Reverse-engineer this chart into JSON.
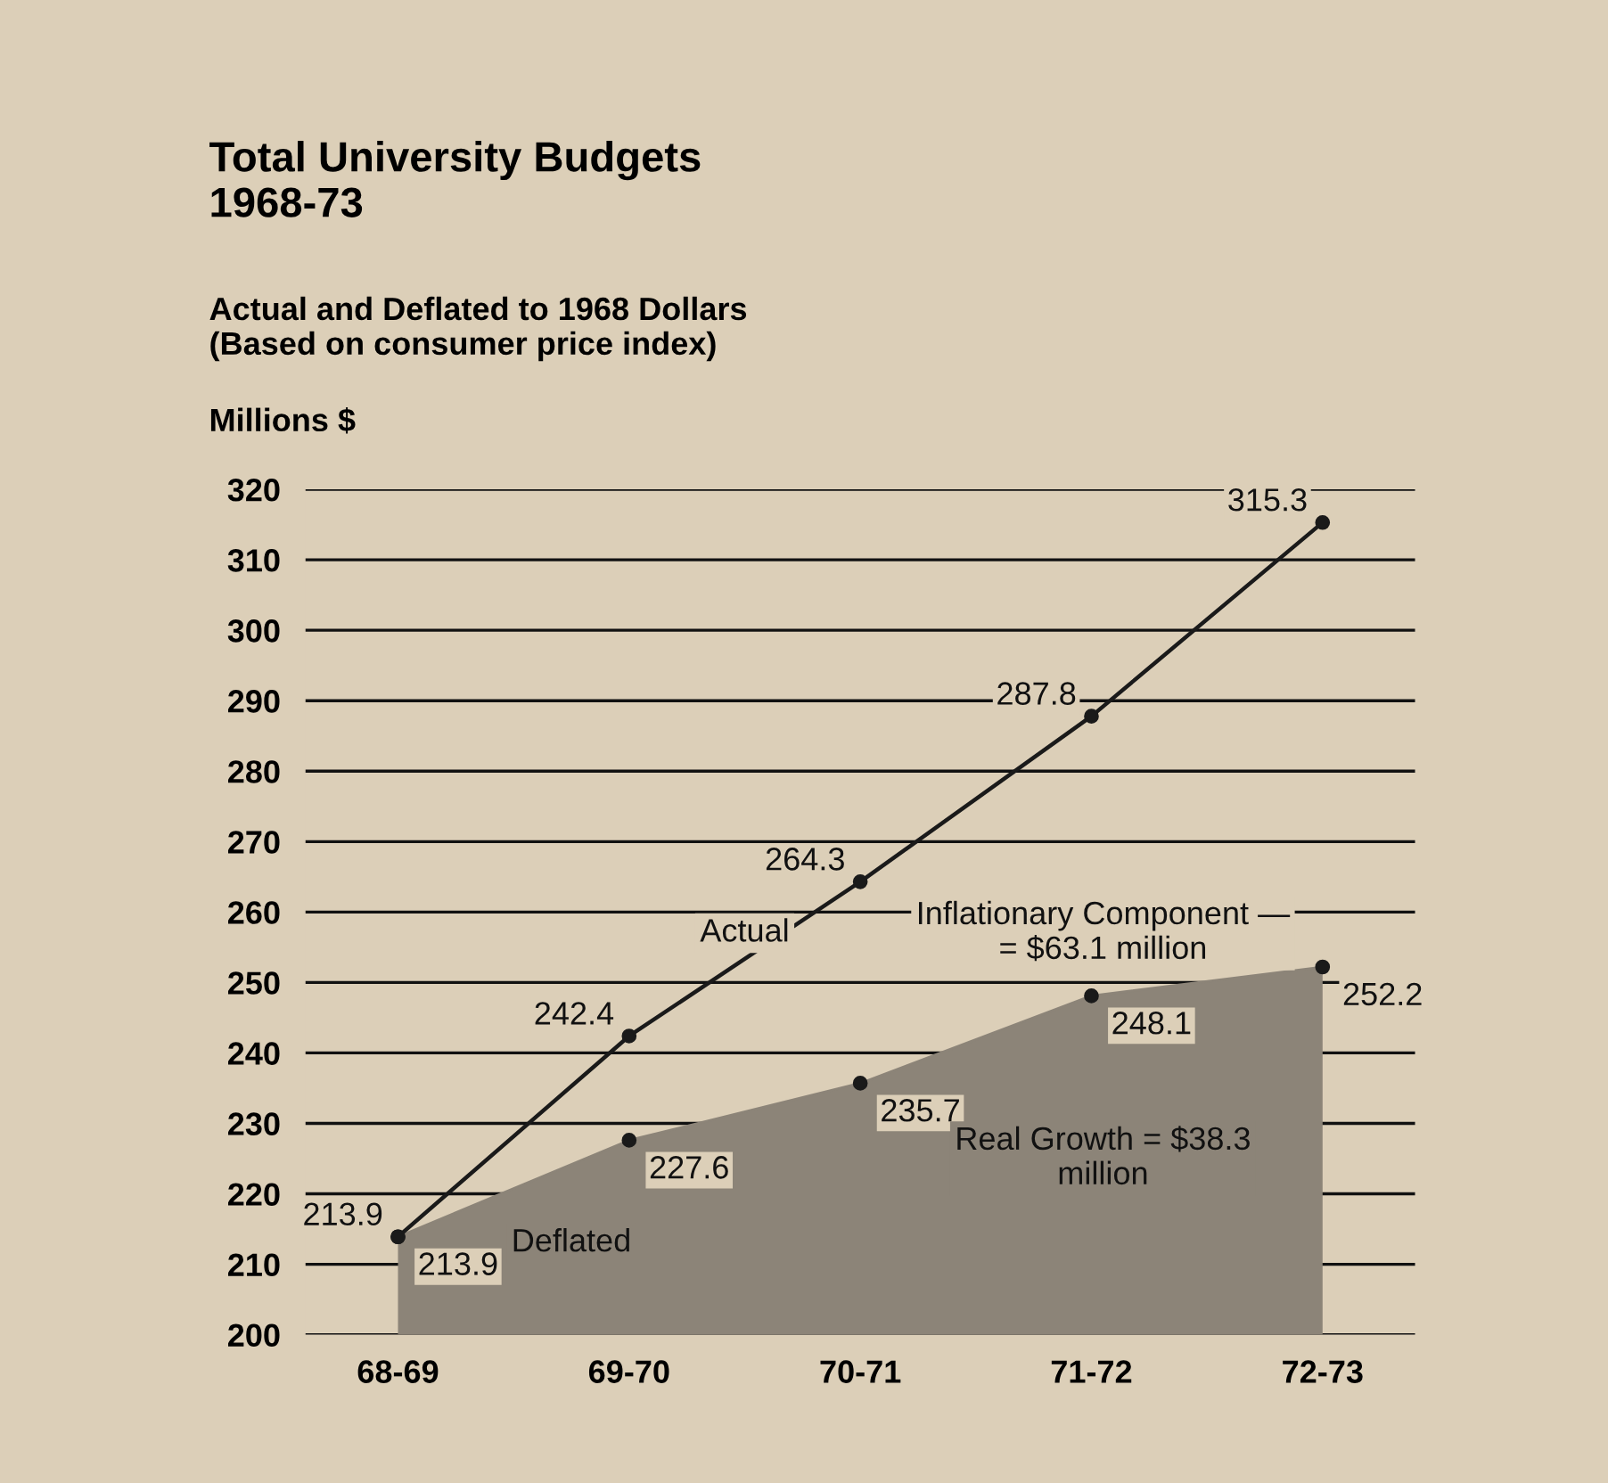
{
  "chart_data": {
    "type": "line",
    "title": "Total University Budgets\n1968-73",
    "subtitle": "Actual and Deflated to 1968 Dollars\n(Based on consumer price index)",
    "ylabel": "Millions $",
    "categories": [
      "68-69",
      "69-70",
      "70-71",
      "71-72",
      "72-73"
    ],
    "series": [
      {
        "name": "Actual",
        "color": "#1a1a1a",
        "values": [
          213.9,
          242.4,
          264.3,
          287.8,
          315.3
        ]
      },
      {
        "name": "Deflated",
        "type": "area",
        "color": "#8c8478",
        "values": [
          213.9,
          227.6,
          235.7,
          248.1,
          252.2
        ]
      }
    ],
    "annotations": [
      "Inflationary Component —\n= $63.1 million",
      "Real Growth = $38.3\nmillion"
    ],
    "ylim": [
      200,
      320
    ],
    "yticks": [
      200,
      210,
      220,
      230,
      240,
      250,
      260,
      270,
      280,
      290,
      300,
      310,
      320
    ],
    "grid": "y",
    "marker": "circle",
    "line_style": "solid",
    "data_labels": true
  }
}
